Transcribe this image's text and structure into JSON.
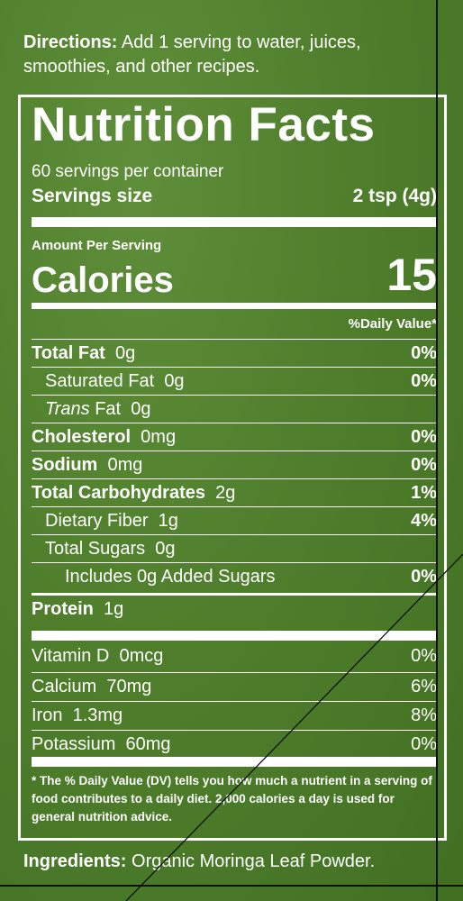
{
  "directions": {
    "label": "Directions:",
    "text": " Add 1 serving to water, juices, smoothies, and other recipes."
  },
  "facts": {
    "title": "Nutrition Facts",
    "servings_per_container": "60 servings per container",
    "serving_size_label": "Servings size",
    "serving_size_value": "2 tsp (4g)",
    "amount_per_serving": "Amount Per Serving",
    "calories_label": "Calories",
    "calories_value": "15",
    "daily_value_header": "%Daily Value*"
  },
  "nutrients": [
    {
      "name": "Total Fat",
      "amount": "0g",
      "dv": "0%"
    },
    {
      "name": "Saturated Fat",
      "amount": "0g",
      "dv": "0%"
    },
    {
      "name": "Trans",
      "name_suffix": " Fat",
      "amount": "0g",
      "dv": ""
    },
    {
      "name": "Cholesterol",
      "amount": "0mg",
      "dv": "0%"
    },
    {
      "name": "Sodium",
      "amount": "0mg",
      "dv": "0%"
    },
    {
      "name": "Total Carbohydrates",
      "amount": "2g",
      "dv": "1%"
    },
    {
      "name": "Dietary Fiber",
      "amount": "1g",
      "dv": "4%"
    },
    {
      "name": "Total Sugars",
      "amount": "0g",
      "dv": ""
    },
    {
      "name": "Includes 0g Added Sugars",
      "amount": "",
      "dv": "0%"
    },
    {
      "name": "Protein",
      "amount": "1g",
      "dv": ""
    }
  ],
  "vitamins": [
    {
      "name": "Vitamin D",
      "amount": "0mcg",
      "dv": "0%"
    },
    {
      "name": "Calcium",
      "amount": "70mg",
      "dv": "6%"
    },
    {
      "name": "Iron",
      "amount": "1.3mg",
      "dv": "8%"
    },
    {
      "name": "Potassium",
      "amount": "60mg",
      "dv": "0%"
    }
  ],
  "footnote": "* The % Daily Value (DV) tells you how much a nutrient in a serving of food contributes to a daily diet. 2,000 calories a day is used for general nutrition advice.",
  "ingredients": {
    "label": "Ingredients:",
    "text": " Organic Moringa Leaf Powder."
  }
}
